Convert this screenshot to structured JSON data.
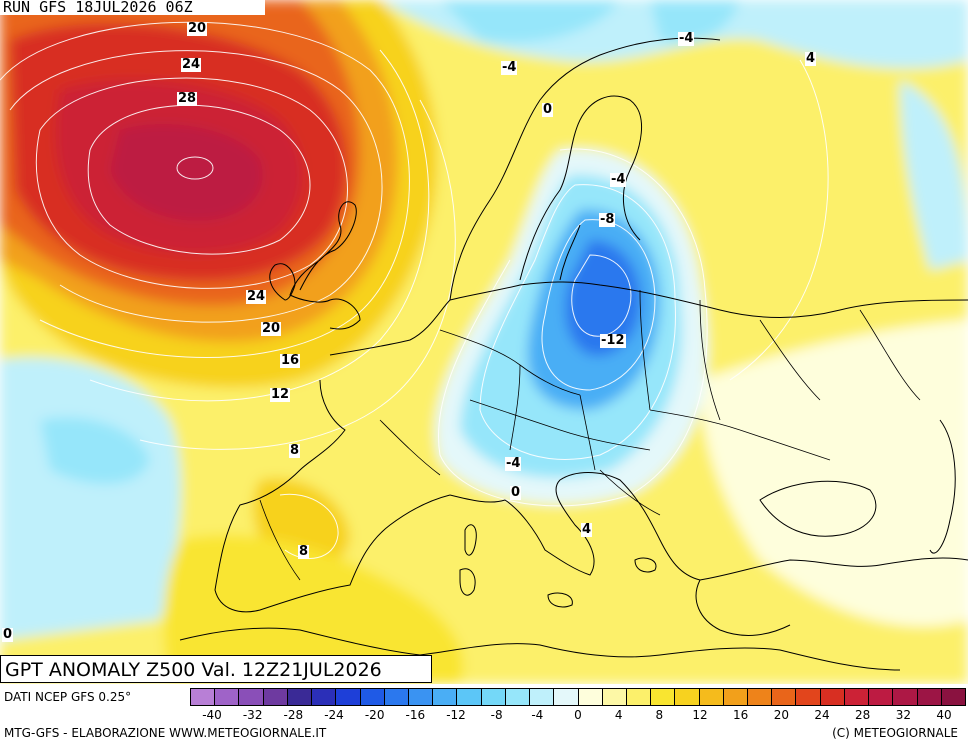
{
  "header": {
    "run": "RUN GFS 18JUL2026 06Z"
  },
  "title": "GPT ANOMALY Z500 Val. 12Z21JUL2026",
  "footer": {
    "data_source": "DATI NCEP GFS 0.25°",
    "credits": "MTG-GFS - ELABORAZIONE WWW.METEOGIORNALE.IT",
    "copyright": "(C) METEOGIORNALE"
  },
  "legend": {
    "colors": [
      "#b87fd6",
      "#9f63c8",
      "#8a4fb8",
      "#6e3aa0",
      "#3a2a96",
      "#2b2fb8",
      "#1e3fd8",
      "#1f5ae6",
      "#2b78ee",
      "#3a93f2",
      "#4aaef5",
      "#5cc6f7",
      "#74d8f8",
      "#96e6fa",
      "#bff0fb",
      "#e4f8fa",
      "#fefedc",
      "#fdf8a6",
      "#fcf06b",
      "#f9e530",
      "#f7d21f",
      "#f5bb1c",
      "#f2a01b",
      "#ee831a",
      "#e9651a",
      "#e2451c",
      "#d82f22",
      "#cc2236",
      "#bd1b42",
      "#ad1845",
      "#9c1545",
      "#8a1240"
    ],
    "tick_labels": [
      "-40",
      "-32",
      "-28",
      "-24",
      "-20",
      "-16",
      "-12",
      "-8",
      "-4",
      "0",
      "4",
      "8",
      "12",
      "16",
      "20",
      "24",
      "28",
      "32",
      "40"
    ]
  },
  "contour_labels": [
    "20",
    "24",
    "28",
    "24",
    "20",
    "16",
    "12",
    "8",
    "8",
    "-4",
    "0",
    "-4",
    "-8",
    "-12",
    "-4",
    "0",
    "4",
    "4",
    "-4",
    "0"
  ]
}
